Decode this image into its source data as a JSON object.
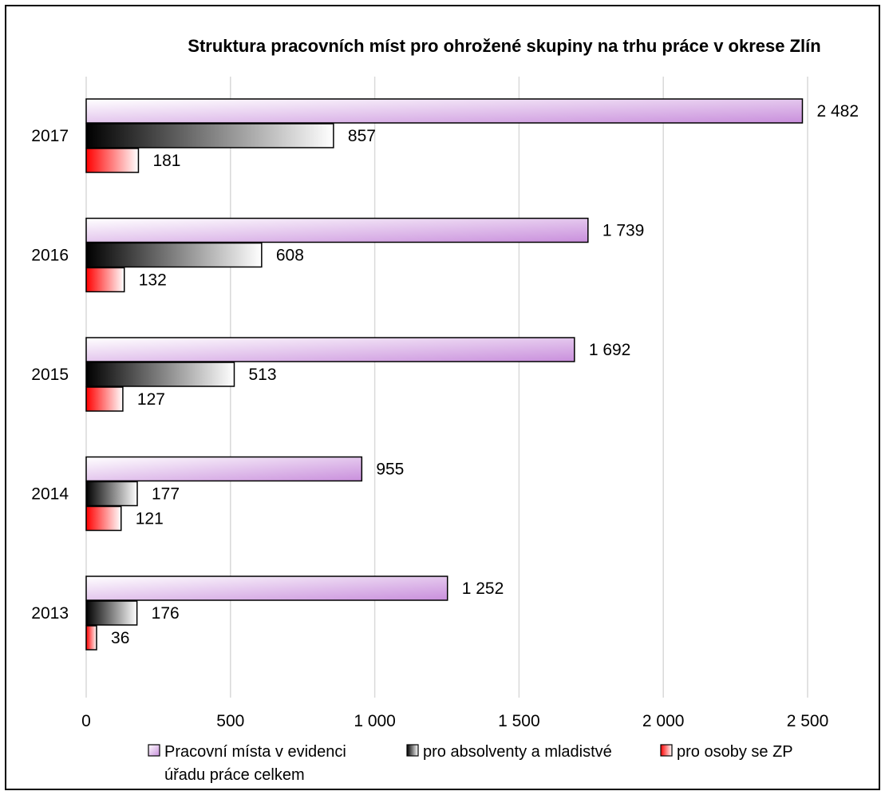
{
  "chart_data": {
    "type": "bar",
    "orientation": "horizontal",
    "title": "Struktura pracovních míst pro ohrožené skupiny na trhu práce v okrese Zlín",
    "xlabel": "",
    "ylabel": "",
    "categories": [
      "2017",
      "2016",
      "2015",
      "2014",
      "2013"
    ],
    "series": [
      {
        "name": "Pracovní místa v evidenci úřadu práce celkem",
        "legend_lines": [
          "Pracovní místa v evidenci",
          "úřadu práce celkem"
        ],
        "values": [
          2482,
          1739,
          1692,
          955,
          1252
        ],
        "labels": [
          "2 482",
          "1 739",
          "1 692",
          "955",
          "1 252"
        ],
        "color": "#c98fdc"
      },
      {
        "name": "pro absolventy a mladistvé",
        "legend_lines": [
          "pro absolventy a mladistvé"
        ],
        "values": [
          857,
          608,
          513,
          177,
          176
        ],
        "labels": [
          "857",
          "608",
          "513",
          "177",
          "176"
        ],
        "color": "#000000"
      },
      {
        "name": "pro osoby se ZP",
        "legend_lines": [
          "pro osoby se ZP"
        ],
        "values": [
          181,
          132,
          127,
          121,
          36
        ],
        "labels": [
          "181",
          "132",
          "127",
          "121",
          "36"
        ],
        "color": "#ff0000"
      }
    ],
    "xlim": [
      0,
      2500
    ],
    "x_ticks": [
      0,
      500,
      1000,
      1500,
      2000,
      2500
    ],
    "x_tick_labels": [
      "0",
      "500",
      "1 000",
      "1 500",
      "2 000",
      "2 500"
    ],
    "grid": "vertical",
    "legend_position": "bottom"
  }
}
